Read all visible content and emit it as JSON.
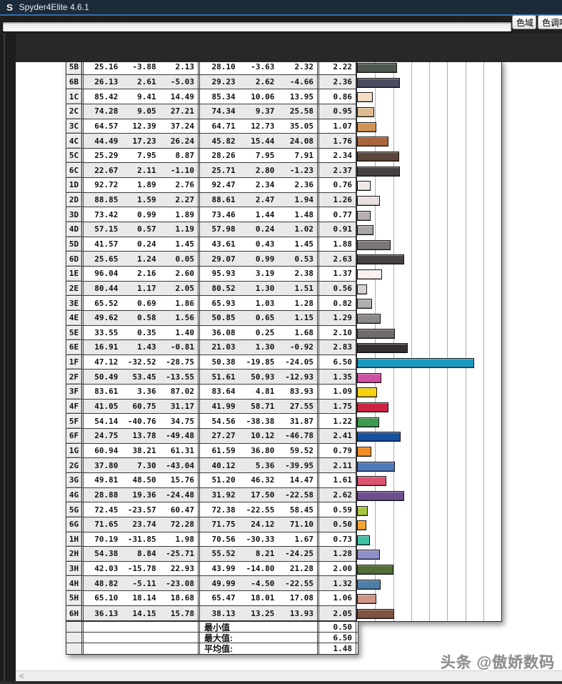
{
  "window": {
    "title": "Spyder4Elite 4.6.1",
    "logo_letter": "S"
  },
  "toolbar": {
    "tabs": [
      {
        "label": "色域"
      },
      {
        "label": "色调响应"
      }
    ]
  },
  "table": {
    "rows": [
      {
        "id": "5B",
        "target": [
          "25.16",
          "-3.88",
          "2.13"
        ],
        "measured": [
          "28.10",
          "-3.63",
          "2.32"
        ],
        "delta_e": "2.22",
        "color": "#4e584f"
      },
      {
        "id": "6B",
        "target": [
          "26.13",
          "2.61",
          "-5.03"
        ],
        "measured": [
          "29.23",
          "2.62",
          "-4.66"
        ],
        "delta_e": "2.36",
        "color": "#4a4c5f"
      },
      {
        "id": "1C",
        "target": [
          "85.42",
          "9.41",
          "14.49"
        ],
        "measured": [
          "85.34",
          "10.06",
          "13.95"
        ],
        "delta_e": "0.86",
        "color": "#f4dcc6"
      },
      {
        "id": "2C",
        "target": [
          "74.28",
          "9.05",
          "27.21"
        ],
        "measured": [
          "74.34",
          "9.37",
          "25.58"
        ],
        "delta_e": "0.95",
        "color": "#dfbc8e"
      },
      {
        "id": "3C",
        "target": [
          "64.57",
          "12.39",
          "37.24"
        ],
        "measured": [
          "64.71",
          "12.73",
          "35.05"
        ],
        "delta_e": "1.07",
        "color": "#d19354"
      },
      {
        "id": "4C",
        "target": [
          "44.49",
          "17.23",
          "26.24"
        ],
        "measured": [
          "45.82",
          "15.44",
          "24.08"
        ],
        "delta_e": "1.76",
        "color": "#a8663c"
      },
      {
        "id": "5C",
        "target": [
          "25.29",
          "7.95",
          "8.87"
        ],
        "measured": [
          "28.26",
          "7.95",
          "7.91"
        ],
        "delta_e": "2.34",
        "color": "#5a463a"
      },
      {
        "id": "6C",
        "target": [
          "22.67",
          "2.11",
          "-1.10"
        ],
        "measured": [
          "25.71",
          "2.80",
          "-1.23"
        ],
        "delta_e": "2.37",
        "color": "#454044"
      },
      {
        "id": "1D",
        "target": [
          "92.72",
          "1.89",
          "2.76"
        ],
        "measured": [
          "92.47",
          "2.34",
          "2.36"
        ],
        "delta_e": "0.76",
        "color": "#f1e9e5"
      },
      {
        "id": "2D",
        "target": [
          "88.85",
          "1.59",
          "2.27"
        ],
        "measured": [
          "88.61",
          "2.47",
          "1.94"
        ],
        "delta_e": "1.26",
        "color": "#e8e1df"
      },
      {
        "id": "3D",
        "target": [
          "73.42",
          "0.99",
          "1.89"
        ],
        "measured": [
          "73.46",
          "1.44",
          "1.48"
        ],
        "delta_e": "0.77",
        "color": "#b5afaf"
      },
      {
        "id": "4D",
        "target": [
          "57.15",
          "0.57",
          "1.19"
        ],
        "measured": [
          "57.98",
          "0.24",
          "1.02"
        ],
        "delta_e": "0.91",
        "color": "#a9a5a5"
      },
      {
        "id": "5D",
        "target": [
          "41.57",
          "0.24",
          "1.45"
        ],
        "measured": [
          "43.61",
          "0.43",
          "1.45"
        ],
        "delta_e": "1.88",
        "color": "#7b7777"
      },
      {
        "id": "6D",
        "target": [
          "25.65",
          "1.24",
          "0.05"
        ],
        "measured": [
          "29.07",
          "0.99",
          "0.53"
        ],
        "delta_e": "2.63",
        "color": "#474245"
      },
      {
        "id": "1E",
        "target": [
          "96.04",
          "2.16",
          "2.60"
        ],
        "measured": [
          "95.93",
          "3.19",
          "2.38"
        ],
        "delta_e": "1.37",
        "color": "#f8efee"
      },
      {
        "id": "2E",
        "target": [
          "80.44",
          "1.17",
          "2.05"
        ],
        "measured": [
          "80.52",
          "1.30",
          "1.51"
        ],
        "delta_e": "0.56",
        "color": "#d7d1d1"
      },
      {
        "id": "3E",
        "target": [
          "65.52",
          "0.69",
          "1.86"
        ],
        "measured": [
          "65.93",
          "1.03",
          "1.28"
        ],
        "delta_e": "0.82",
        "color": "#b1adad"
      },
      {
        "id": "4E",
        "target": [
          "49.62",
          "0.58",
          "1.56"
        ],
        "measured": [
          "50.85",
          "0.65",
          "1.15"
        ],
        "delta_e": "1.29",
        "color": "#8e8a8a"
      },
      {
        "id": "5E",
        "target": [
          "33.55",
          "0.35",
          "1.40"
        ],
        "measured": [
          "36.08",
          "0.25",
          "1.68"
        ],
        "delta_e": "2.10",
        "color": "#706c6c"
      },
      {
        "id": "6E",
        "target": [
          "16.91",
          "1.43",
          "-0.81"
        ],
        "measured": [
          "21.03",
          "1.30",
          "-0.92"
        ],
        "delta_e": "2.83",
        "color": "#343034"
      },
      {
        "id": "1F",
        "target": [
          "47.12",
          "-32.52",
          "-28.75"
        ],
        "measured": [
          "50.38",
          "-19.85",
          "-24.05"
        ],
        "delta_e": "6.50",
        "color": "#1b9abf"
      },
      {
        "id": "2F",
        "target": [
          "50.49",
          "53.45",
          "-13.55"
        ],
        "measured": [
          "51.61",
          "50.93",
          "-12.93"
        ],
        "delta_e": "1.35",
        "color": "#d051a3"
      },
      {
        "id": "3F",
        "target": [
          "83.61",
          "3.36",
          "87.02"
        ],
        "measured": [
          "83.64",
          "4.81",
          "83.93"
        ],
        "delta_e": "1.09",
        "color": "#f6d10c"
      },
      {
        "id": "4F",
        "target": [
          "41.05",
          "60.75",
          "31.17"
        ],
        "measured": [
          "41.99",
          "58.71",
          "27.55"
        ],
        "delta_e": "1.75",
        "color": "#cd2342"
      },
      {
        "id": "5F",
        "target": [
          "54.14",
          "-40.76",
          "34.75"
        ],
        "measured": [
          "54.56",
          "-38.38",
          "31.87"
        ],
        "delta_e": "1.22",
        "color": "#3f9b4f"
      },
      {
        "id": "6F",
        "target": [
          "24.75",
          "13.78",
          "-49.48"
        ],
        "measured": [
          "27.27",
          "10.12",
          "-46.78"
        ],
        "delta_e": "2.41",
        "color": "#16509f"
      },
      {
        "id": "1G",
        "target": [
          "60.94",
          "38.21",
          "61.31"
        ],
        "measured": [
          "61.59",
          "36.80",
          "59.52"
        ],
        "delta_e": "0.79",
        "color": "#f08b27"
      },
      {
        "id": "2G",
        "target": [
          "37.80",
          "7.30",
          "-43.04"
        ],
        "measured": [
          "40.12",
          "5.36",
          "-39.95"
        ],
        "delta_e": "2.11",
        "color": "#4d79bb"
      },
      {
        "id": "3G",
        "target": [
          "49.81",
          "48.50",
          "15.76"
        ],
        "measured": [
          "51.20",
          "46.32",
          "14.47"
        ],
        "delta_e": "1.61",
        "color": "#da5570"
      },
      {
        "id": "4G",
        "target": [
          "28.88",
          "19.36",
          "-24.48"
        ],
        "measured": [
          "31.92",
          "17.50",
          "-22.58"
        ],
        "delta_e": "2.62",
        "color": "#6c4f8f"
      },
      {
        "id": "5G",
        "target": [
          "72.45",
          "-23.57",
          "60.47"
        ],
        "measured": [
          "72.38",
          "-22.55",
          "58.45"
        ],
        "delta_e": "0.59",
        "color": "#a7c744"
      },
      {
        "id": "6G",
        "target": [
          "71.65",
          "23.74",
          "72.28"
        ],
        "measured": [
          "71.75",
          "24.12",
          "71.10"
        ],
        "delta_e": "0.50",
        "color": "#f2a42d"
      },
      {
        "id": "1H",
        "target": [
          "70.19",
          "-31.85",
          "1.98"
        ],
        "measured": [
          "70.56",
          "-30.33",
          "1.67"
        ],
        "delta_e": "0.73",
        "color": "#41c1a7"
      },
      {
        "id": "2H",
        "target": [
          "54.38",
          "8.84",
          "-25.71"
        ],
        "measured": [
          "55.52",
          "8.21",
          "-24.25"
        ],
        "delta_e": "1.28",
        "color": "#908fc9"
      },
      {
        "id": "3H",
        "target": [
          "42.03",
          "-15.78",
          "22.93"
        ],
        "measured": [
          "43.99",
          "-14.80",
          "21.28"
        ],
        "delta_e": "2.00",
        "color": "#516e36"
      },
      {
        "id": "4H",
        "target": [
          "48.82",
          "-5.11",
          "-23.08"
        ],
        "measured": [
          "49.99",
          "-4.50",
          "-22.55"
        ],
        "delta_e": "1.32",
        "color": "#4d7ea9"
      },
      {
        "id": "5H",
        "target": [
          "65.10",
          "18.14",
          "18.68"
        ],
        "measured": [
          "65.47",
          "18.01",
          "17.08"
        ],
        "delta_e": "1.06",
        "color": "#d09486"
      },
      {
        "id": "6H",
        "target": [
          "36.13",
          "14.15",
          "15.78"
        ],
        "measured": [
          "38.13",
          "13.25",
          "13.93"
        ],
        "delta_e": "2.05",
        "color": "#7f5442"
      }
    ],
    "summary": [
      {
        "label": "最小值",
        "value": "0.50"
      },
      {
        "label": "最大值:",
        "value": "6.50"
      },
      {
        "label": "平均值:",
        "value": "1.48"
      }
    ]
  },
  "chart": {
    "axis_max": 8,
    "gridline_count": 7
  },
  "scrollbar": {
    "left_arrow": "<"
  },
  "watermark": {
    "text": "头条 @傲娇数码"
  }
}
